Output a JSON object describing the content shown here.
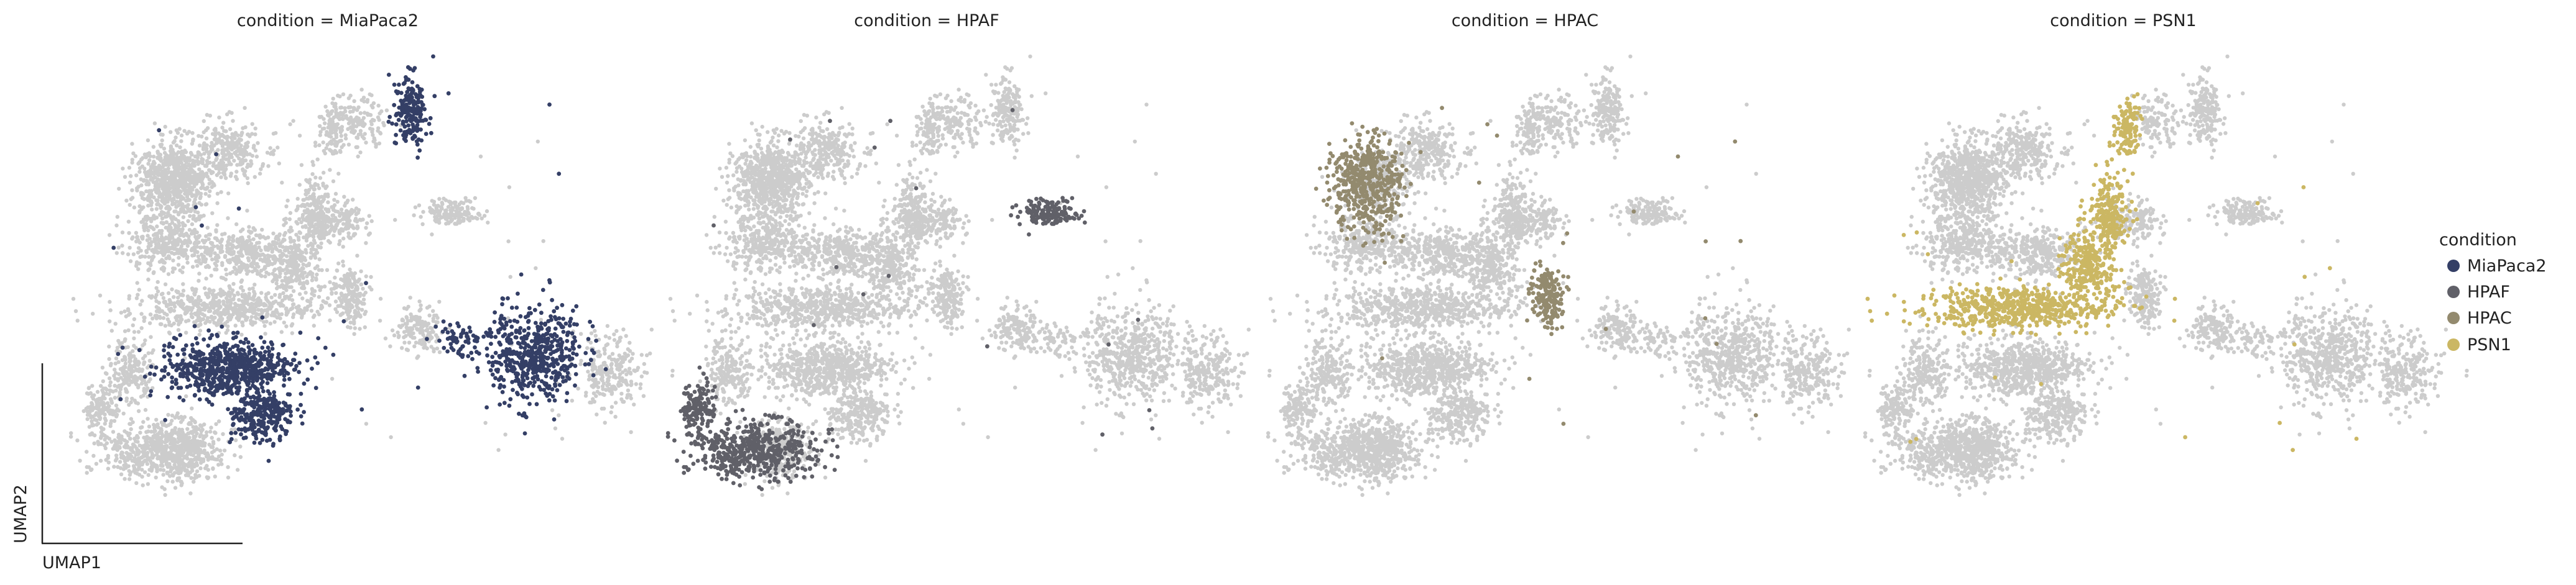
{
  "chart_data": {
    "type": "scatter",
    "xlabel": "UMAP1",
    "ylabel": "UMAP2",
    "background_color": "#cccccc",
    "panels": [
      {
        "title": "condition = MiaPaca2",
        "highlight": "MiaPaca2"
      },
      {
        "title": "condition = HPAF",
        "highlight": "HPAF"
      },
      {
        "title": "condition = HPAC",
        "highlight": "HPAC"
      },
      {
        "title": "condition = PSN1",
        "highlight": "PSN1"
      }
    ],
    "legend": {
      "title": "condition",
      "placement": "right",
      "items": [
        {
          "label": "MiaPaca2",
          "color": "#343f66"
        },
        {
          "label": "HPAF",
          "color": "#606068"
        },
        {
          "label": "HPAC",
          "color": "#938a6e"
        },
        {
          "label": "PSN1",
          "color": "#cbb763"
        }
      ]
    }
  }
}
